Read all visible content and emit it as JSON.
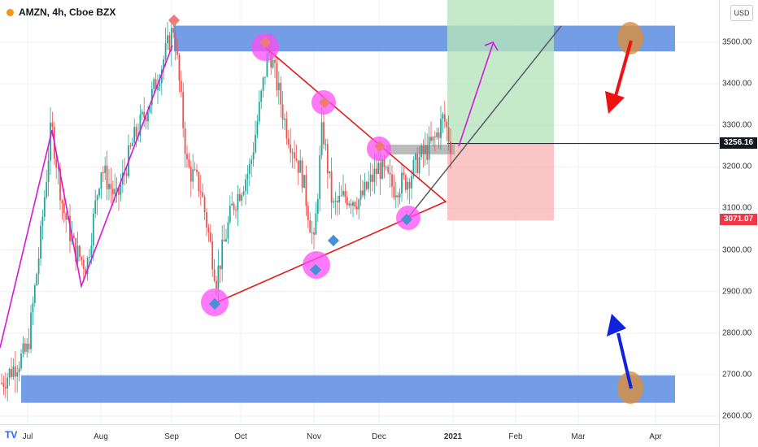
{
  "header": {
    "symbol_label": "AMZN, 4h, Cboe BZX",
    "currency": "USD"
  },
  "price_axis": {
    "ticks": [
      "3500.00",
      "3400.00",
      "3300.00",
      "3200.00",
      "3100.00",
      "3000.00",
      "2900.00",
      "2800.00",
      "2700.00",
      "2600.00"
    ],
    "current_price": "3256.16",
    "stop_price": "3071.07"
  },
  "time_axis": {
    "ticks": [
      "Jul",
      "Aug",
      "Sep",
      "Oct",
      "Nov",
      "Dec",
      "2021",
      "Feb",
      "Mar",
      "Apr"
    ]
  },
  "colors": {
    "up_candle": "#26a69a",
    "down_candle": "#ef5350",
    "zone_blue": "#5b8ce0",
    "profit_green": "#b7e3bc",
    "loss_red": "#f8b7b7",
    "trend_red": "#e41a1a",
    "pattern_magenta": "#d717d7",
    "highlight_pink": "#ff4df5",
    "marker_blue": "#4a8fd6",
    "target_orange": "#d9903d",
    "arrow_red": "#ee1111",
    "arrow_blue": "#1122dd"
  },
  "chart_data": {
    "type": "candlestick",
    "symbol": "AMZN",
    "timeframe": "4h",
    "exchange": "Cboe BZX",
    "ylim": [
      2580,
      3600
    ],
    "x_categories": [
      "Jul",
      "Aug",
      "Sep",
      "Oct",
      "Nov",
      "Dec",
      "2021",
      "Feb",
      "Mar",
      "Apr"
    ],
    "price_path": [
      [
        "Jun end",
        2680
      ],
      [
        "Jul 1",
        2760
      ],
      [
        "Jul 6",
        3000
      ],
      [
        "Jul 11",
        3300
      ],
      [
        "Jul 16",
        3100
      ],
      [
        "Jul 21",
        3000
      ],
      [
        "Jul 26",
        2960
      ],
      [
        "Aug 1",
        3200
      ],
      [
        "Aug 8",
        3120
      ],
      [
        "Aug 15",
        3260
      ],
      [
        "Aug 22",
        3350
      ],
      [
        "Aug 28",
        3450
      ],
      [
        "Sep 2",
        3540
      ],
      [
        "Sep 8",
        3200
      ],
      [
        "Sep 14",
        3150
      ],
      [
        "Sep 21",
        2930
      ],
      [
        "Sep 28",
        3100
      ],
      [
        "Oct 5",
        3200
      ],
      [
        "Oct 13",
        3490
      ],
      [
        "Oct 20",
        3300
      ],
      [
        "Oct 27",
        3180
      ],
      [
        "Nov 1",
        3010
      ],
      [
        "Nov 5",
        3300
      ],
      [
        "Nov 10",
        3100
      ],
      [
        "Nov 16",
        3130
      ],
      [
        "Nov 23",
        3120
      ],
      [
        "Dec 1",
        3200
      ],
      [
        "Dec 7",
        3150
      ],
      [
        "Dec 13",
        3170
      ],
      [
        "Dec 18",
        3220
      ],
      [
        "Dec 24",
        3260
      ],
      [
        "Dec 28",
        3320
      ],
      [
        "Dec 31",
        3256
      ]
    ],
    "zones": {
      "resistance": [
        3478,
        3540
      ],
      "support": [
        2632,
        2698
      ]
    },
    "position": {
      "entry": 3256.16,
      "stop": 3071.07
    }
  }
}
